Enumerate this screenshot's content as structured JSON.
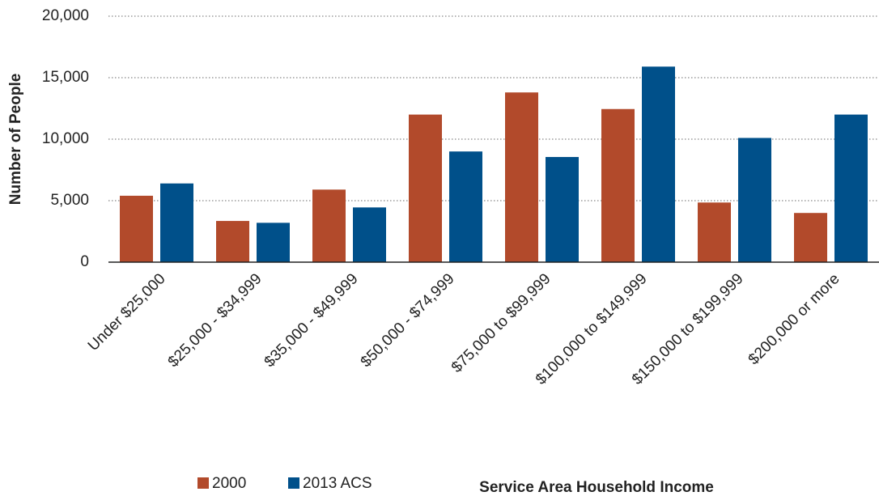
{
  "chart_data": {
    "type": "bar",
    "categories": [
      "Under $25,000",
      "$25,000 - $34,999",
      "$35,000 - $49,999",
      "$50,000 - $74,999",
      "$75,000 to $99,999",
      "$100,000 to $149,999",
      "$150,000 to $199,999",
      "$200,000 or more"
    ],
    "series": [
      {
        "name": "2000",
        "color": "#b24a2b",
        "values": [
          5400,
          3350,
          5900,
          12000,
          13800,
          12450,
          4850,
          4000
        ]
      },
      {
        "name": "2013 ACS",
        "color": "#00508a",
        "values": [
          6400,
          3200,
          4450,
          9000,
          8550,
          15900,
          10100,
          12000
        ]
      }
    ],
    "y_label": "Number of People",
    "x_label": "Service Area Household Income",
    "ylim": [
      0,
      20000
    ],
    "yticks": [
      0,
      {
        "value": 5000,
        "label": "5,000"
      },
      {
        "value": 10000,
        "label": "10,000"
      },
      {
        "value": 15000,
        "label": "15,000"
      },
      {
        "value": 20000,
        "label": "20,000"
      }
    ],
    "grid": true,
    "legend": "bottom"
  }
}
